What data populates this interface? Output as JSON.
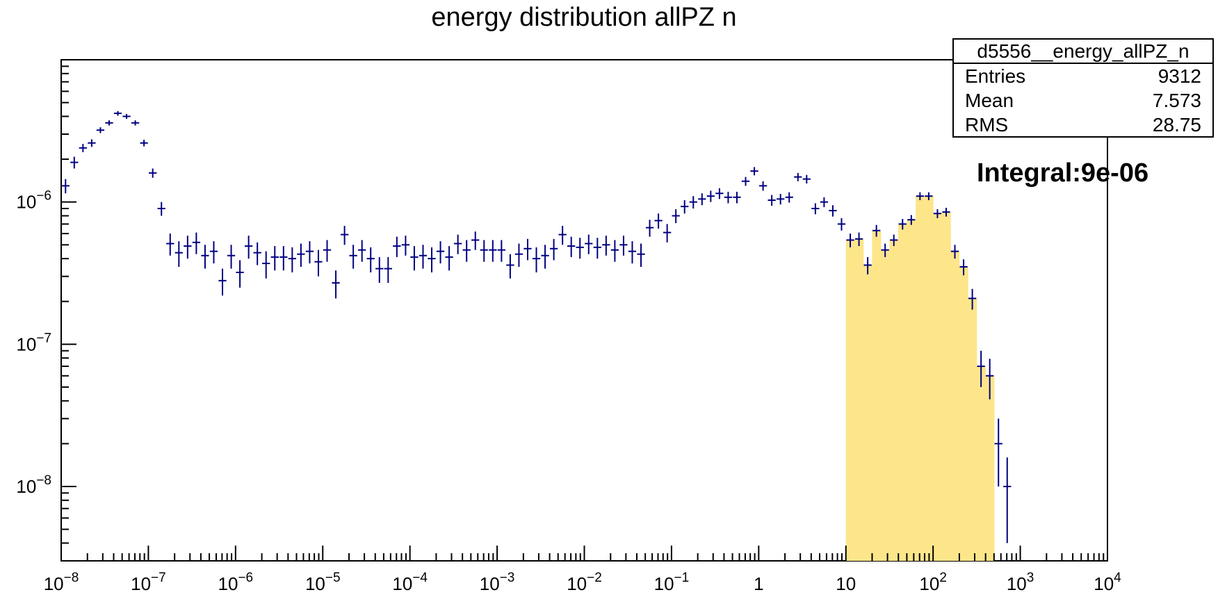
{
  "title": "energy distribution allPZ n",
  "stats": {
    "name": "d5556__energy_allPZ_n",
    "entries_label": "Entries",
    "entries": "9312",
    "mean_label": "Mean",
    "mean": "7.573",
    "rms_label": "RMS",
    "rms": "28.75"
  },
  "integral_text": "Integral:9e-06",
  "colors": {
    "markers": "#000080",
    "fill": "#fde68a",
    "axis": "#000000"
  },
  "chart_data": {
    "type": "scatter",
    "x_scale": "log",
    "y_scale": "log",
    "xlim": [
      1e-08,
      10000.0
    ],
    "ylim": [
      3e-09,
      1e-05
    ],
    "grid": false,
    "x_tick_labels": [
      {
        "b": "10",
        "e": "−8",
        "v": 1e-08
      },
      {
        "b": "10",
        "e": "−7",
        "v": 1e-07
      },
      {
        "b": "10",
        "e": "−6",
        "v": 1e-06
      },
      {
        "b": "10",
        "e": "−5",
        "v": 1e-05
      },
      {
        "b": "10",
        "e": "−4",
        "v": 0.0001
      },
      {
        "b": "10",
        "e": "−3",
        "v": 0.001
      },
      {
        "b": "10",
        "e": "−2",
        "v": 0.01
      },
      {
        "b": "10",
        "e": "−1",
        "v": 0.1
      },
      {
        "b": "1",
        "e": "",
        "v": 1
      },
      {
        "b": "10",
        "e": "",
        "v": 10
      },
      {
        "b": "10",
        "e": "2",
        "v": 100
      },
      {
        "b": "10",
        "e": "3",
        "v": 1000
      },
      {
        "b": "10",
        "e": "4",
        "v": 10000
      }
    ],
    "y_tick_labels": [
      {
        "b": "10",
        "e": "−8",
        "v": 1e-08
      },
      {
        "b": "10",
        "e": "−7",
        "v": 1e-07
      },
      {
        "b": "10",
        "e": "−6",
        "v": 1e-06
      }
    ],
    "bins_per_decade": 10,
    "series": [
      {
        "x_start": 1e-08,
        "values": [
          1.3e-06,
          1.9e-06,
          2.4e-06,
          2.6e-06,
          3.2e-06,
          3.6e-06,
          4.2e-06,
          4e-06,
          3.6e-06,
          2.6e-06,
          1.6e-06,
          9e-07,
          5.1e-07,
          4.4e-07,
          4.9e-07,
          5.2e-07,
          4.2e-07,
          4.5e-07,
          2.8e-07,
          4.2e-07,
          3.2e-07,
          4.9e-07,
          4.4e-07,
          3.7e-07,
          4.1e-07,
          4.1e-07,
          4e-07,
          4.3e-07,
          4.5e-07,
          3.8e-07,
          4.6e-07,
          2.7e-07,
          5.9e-07,
          4.2e-07,
          4.6e-07,
          4e-07,
          3.4e-07,
          3.4e-07,
          4.9e-07,
          5e-07,
          4.1e-07,
          4.2e-07,
          4e-07,
          4.5e-07,
          4.1e-07,
          5.1e-07,
          4.6e-07,
          5.4e-07,
          4.6e-07,
          4.6e-07,
          4.6e-07,
          3.6e-07,
          4.3e-07,
          4.7e-07,
          4e-07,
          4.2e-07,
          4.7e-07,
          5.9e-07,
          4.9e-07,
          4.8e-07,
          5.1e-07,
          4.8e-07,
          5e-07,
          4.6e-07,
          5e-07,
          4.5e-07,
          4.3e-07,
          6.6e-07,
          7.4e-07,
          6.1e-07,
          8e-07,
          9.3e-07,
          1e-06,
          1.05e-06,
          1.1e-06,
          1.15e-06,
          1.08e-06,
          1.08e-06,
          1.4e-06,
          1.65e-06,
          1.3e-06,
          1.03e-06,
          1.05e-06,
          1.08e-06,
          1.5e-06,
          1.45e-06,
          9e-07,
          1e-06,
          8.7e-07,
          7e-07,
          5.4e-07,
          5.5e-07,
          3.6e-07,
          6.3e-07,
          4.6e-07,
          5.4e-07,
          7e-07,
          7.5e-07,
          1.1e-06,
          1.1e-06,
          8.3e-07,
          8.5e-07,
          4.5e-07,
          3.5e-07,
          2.1e-07,
          7e-08,
          6e-08,
          2e-08,
          1e-08
        ],
        "errors": [
          1.5e-07,
          1.8e-07,
          1.6e-07,
          1.6e-07,
          1.5e-07,
          1.5e-07,
          1.6e-07,
          1.6e-07,
          1.5e-07,
          1.4e-07,
          1.2e-07,
          1e-07,
          9e-08,
          9e-08,
          9e-08,
          9e-08,
          8e-08,
          8e-08,
          6e-08,
          8e-08,
          7e-08,
          9e-08,
          8e-08,
          8e-08,
          8e-08,
          8e-08,
          8e-08,
          8e-08,
          8e-08,
          8e-08,
          8e-08,
          6e-08,
          9e-08,
          8e-08,
          8e-08,
          8e-08,
          7e-08,
          7e-08,
          8e-08,
          8e-08,
          8e-08,
          8e-08,
          8e-08,
          8e-08,
          8e-08,
          8e-08,
          8e-08,
          8e-08,
          8e-08,
          8e-08,
          8e-08,
          7e-08,
          8e-08,
          8e-08,
          8e-08,
          8e-08,
          8e-08,
          9e-08,
          8e-08,
          8e-08,
          8e-08,
          8e-08,
          8e-08,
          8e-08,
          8e-08,
          8e-08,
          8e-08,
          9e-08,
          9e-08,
          9e-08,
          9e-08,
          1e-07,
          1e-07,
          1e-07,
          1e-07,
          1e-07,
          1e-07,
          1e-07,
          1e-07,
          1.1e-07,
          1e-07,
          9e-08,
          9e-08,
          9e-08,
          1e-07,
          1e-07,
          8e-08,
          8e-08,
          8e-08,
          7e-08,
          6e-08,
          6e-08,
          5e-08,
          6e-08,
          5e-08,
          5e-08,
          6e-08,
          6e-08,
          7e-08,
          7e-08,
          6e-08,
          6e-08,
          5e-08,
          4.5e-08,
          3.5e-08,
          2e-08,
          1.9e-08,
          1e-08,
          6e-09
        ]
      }
    ],
    "highlight_range": [
      10,
      630
    ]
  }
}
